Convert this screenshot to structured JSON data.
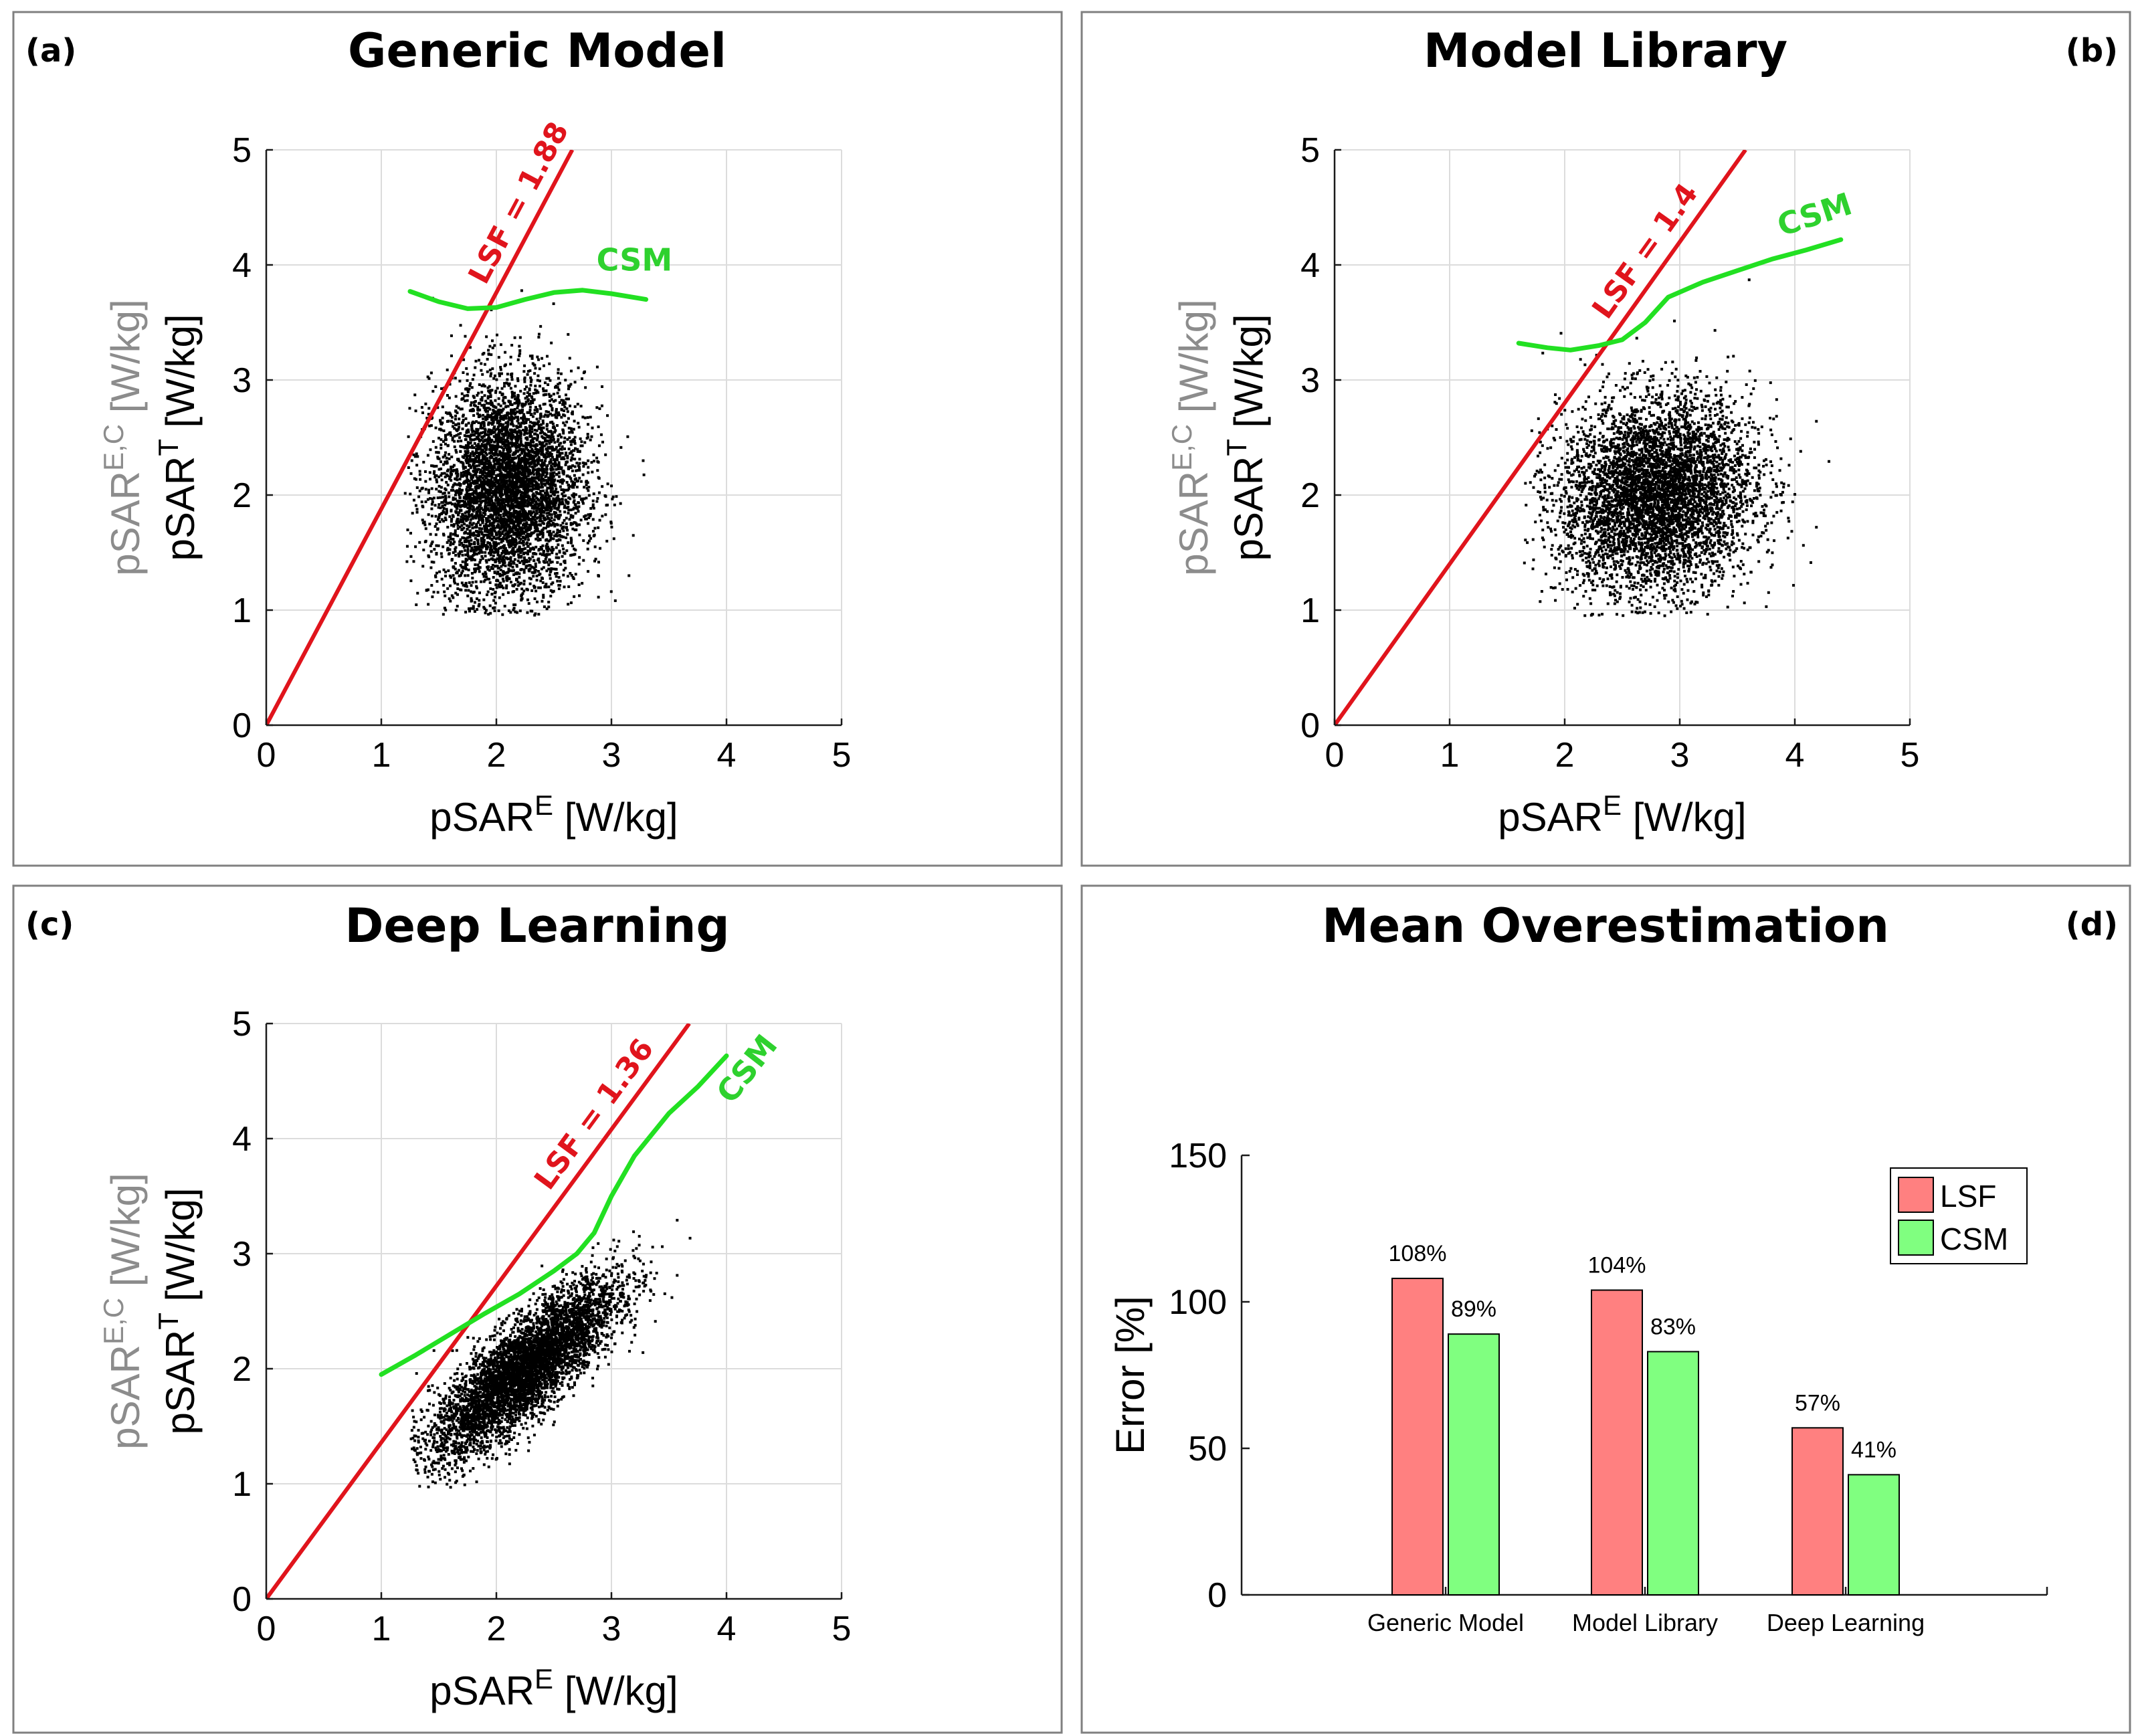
{
  "figure": {
    "panels": [
      {
        "letter": "(a)",
        "title": "Generic Model"
      },
      {
        "letter": "(b)",
        "title": "Model Library"
      },
      {
        "letter": "(c)",
        "title": "Deep Learning"
      },
      {
        "letter": "(d)",
        "title": "Mean Overestimation"
      }
    ]
  },
  "chart_data": [
    {
      "type": "scatter",
      "panel": "(a)",
      "title": "Generic Model",
      "xlabel": "pSAR^E [W/kg]",
      "xlabel_main": "pSAR",
      "xlabel_sup": "E",
      "xlabel_unit": " [W/kg]",
      "ylabel_black_main": "pSAR",
      "ylabel_black_sup": "T",
      "ylabel_black_unit": " [W/kg]",
      "ylabel_gray_main": "pSAR",
      "ylabel_gray_sup": "E,C",
      "ylabel_gray_unit": " [W/kg]",
      "xlim": [
        0,
        5
      ],
      "ylim": [
        0,
        5
      ],
      "xticks": [
        "0",
        "1",
        "2",
        "3",
        "4",
        "5"
      ],
      "yticks": [
        "0",
        "1",
        "2",
        "3",
        "4",
        "5"
      ],
      "grid": true,
      "cloud": {
        "cx": 2.1,
        "cy": 2.05,
        "sx": 0.33,
        "sy": 0.48,
        "rho": 0.05,
        "count": 5000,
        "xrange": [
          1.2,
          3.3
        ],
        "yrange": [
          0.95,
          4.2
        ]
      },
      "lsf": {
        "label": "LSF = 1.88",
        "slope": 1.88
      },
      "csm": {
        "label": "CSM",
        "x": [
          1.25,
          1.5,
          1.75,
          2.0,
          2.25,
          2.5,
          2.75,
          3.0,
          3.3
        ],
        "y": [
          3.77,
          3.68,
          3.62,
          3.63,
          3.7,
          3.76,
          3.78,
          3.75,
          3.7
        ]
      }
    },
    {
      "type": "scatter",
      "panel": "(b)",
      "title": "Model Library",
      "xlabel": "pSAR^E [W/kg]",
      "xlabel_main": "pSAR",
      "xlabel_sup": "E",
      "xlabel_unit": " [W/kg]",
      "ylabel_black_main": "pSAR",
      "ylabel_black_sup": "T",
      "ylabel_black_unit": " [W/kg]",
      "ylabel_gray_main": "pSAR",
      "ylabel_gray_sup": "E,C",
      "ylabel_gray_unit": " [W/kg]",
      "xlim": [
        0,
        5
      ],
      "ylim": [
        0,
        5
      ],
      "xticks": [
        "0",
        "1",
        "2",
        "3",
        "4",
        "5"
      ],
      "yticks": [
        "0",
        "1",
        "2",
        "3",
        "4",
        "5"
      ],
      "grid": true,
      "cloud": {
        "cx": 2.8,
        "cy": 2.0,
        "sx": 0.42,
        "sy": 0.42,
        "rho": 0.1,
        "count": 5000,
        "xrange": [
          1.65,
          4.35
        ],
        "yrange": [
          0.95,
          4.15
        ]
      },
      "lsf": {
        "label": "LSF = 1.4",
        "slope": 1.4
      },
      "csm": {
        "label": "CSM",
        "x": [
          1.6,
          1.85,
          2.05,
          2.3,
          2.5,
          2.7,
          2.9,
          3.2,
          3.5,
          3.8,
          4.1,
          4.4
        ],
        "y": [
          3.32,
          3.28,
          3.26,
          3.3,
          3.35,
          3.5,
          3.72,
          3.85,
          3.95,
          4.05,
          4.13,
          4.22
        ]
      }
    },
    {
      "type": "scatter",
      "panel": "(c)",
      "title": "Deep Learning",
      "xlabel": "pSAR^E [W/kg]",
      "xlabel_main": "pSAR",
      "xlabel_sup": "E",
      "xlabel_unit": " [W/kg]",
      "ylabel_black_main": "pSAR",
      "ylabel_black_sup": "T",
      "ylabel_black_unit": " [W/kg]",
      "ylabel_gray_main": "pSAR",
      "ylabel_gray_sup": "E,C",
      "ylabel_gray_unit": " [W/kg]",
      "xlim": [
        0,
        5
      ],
      "ylim": [
        0,
        5
      ],
      "xticks": [
        "0",
        "1",
        "2",
        "3",
        "4",
        "5"
      ],
      "yticks": [
        "0",
        "1",
        "2",
        "3",
        "4",
        "5"
      ],
      "grid": true,
      "cloud": {
        "cx": 2.25,
        "cy": 2.0,
        "sx": 0.4,
        "sy": 0.38,
        "rho": 0.82,
        "count": 5000,
        "xrange": [
          1.25,
          3.85
        ],
        "yrange": [
          0.95,
          3.85
        ]
      },
      "lsf": {
        "label": "LSF = 1.36",
        "slope": 1.36
      },
      "csm": {
        "label": "CSM",
        "x": [
          1.0,
          1.3,
          1.6,
          1.9,
          2.2,
          2.5,
          2.7,
          2.85,
          3.0,
          3.2,
          3.5,
          3.75,
          4.0
        ],
        "y": [
          1.95,
          2.12,
          2.3,
          2.48,
          2.65,
          2.85,
          3.0,
          3.18,
          3.5,
          3.85,
          4.22,
          4.45,
          4.72
        ]
      }
    },
    {
      "type": "bar",
      "panel": "(d)",
      "title": "Mean Overestimation",
      "ylabel": "Error [%]",
      "xlabel": "",
      "ylim": [
        0,
        150
      ],
      "yticks": [
        "0",
        "50",
        "100",
        "150"
      ],
      "grid": false,
      "legend_position": "top-right",
      "categories": [
        "Generic Model",
        "Model Library",
        "Deep Learning"
      ],
      "series": [
        {
          "name": "LSF",
          "color": "#ff8080",
          "values": [
            108,
            104,
            57
          ],
          "labels": [
            "108%",
            "104%",
            "57%"
          ]
        },
        {
          "name": "CSM",
          "color": "#80ff80",
          "values": [
            89,
            83,
            41
          ],
          "labels": [
            "89%",
            "83%",
            "41%"
          ]
        }
      ]
    }
  ]
}
